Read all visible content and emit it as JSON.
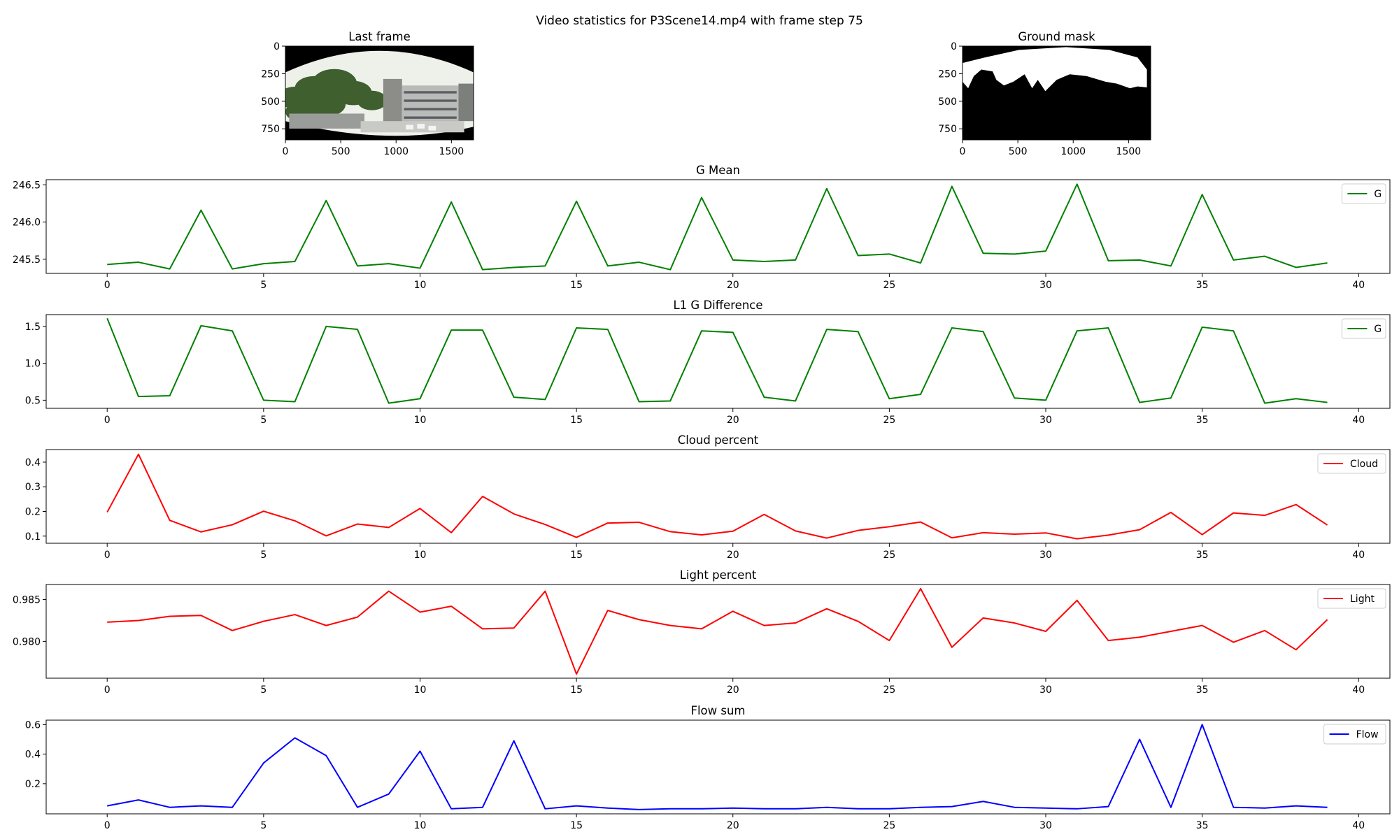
{
  "figure": {
    "title": "Video statistics for P3Scene14.mp4 with frame step 75"
  },
  "images": [
    {
      "title": "Last frame",
      "kind": "photo",
      "xticks": [
        0,
        500,
        1000,
        1500
      ],
      "yticks": [
        0,
        250,
        500,
        750
      ],
      "xlim": [
        0,
        1700
      ],
      "ylim": [
        850,
        0
      ]
    },
    {
      "title": "Ground mask",
      "kind": "mask",
      "xticks": [
        0,
        500,
        1000,
        1500
      ],
      "yticks": [
        0,
        250,
        500,
        750
      ],
      "xlim": [
        0,
        1700
      ],
      "ylim": [
        850,
        0
      ]
    }
  ],
  "chart_data": [
    {
      "type": "line",
      "title": "G Mean",
      "x": [
        0,
        1,
        2,
        3,
        4,
        5,
        6,
        7,
        8,
        9,
        10,
        11,
        12,
        13,
        14,
        15,
        16,
        17,
        18,
        19,
        20,
        21,
        22,
        23,
        24,
        25,
        26,
        27,
        28,
        29,
        30,
        31,
        32,
        33,
        34,
        35,
        36,
        37,
        38,
        39
      ],
      "series": [
        {
          "name": "G",
          "color": "#008000",
          "values": [
            245.43,
            245.46,
            245.37,
            246.16,
            245.37,
            245.44,
            245.47,
            246.29,
            245.41,
            245.44,
            245.38,
            246.27,
            245.36,
            245.39,
            245.41,
            246.28,
            245.41,
            245.46,
            245.36,
            246.33,
            245.49,
            245.47,
            245.49,
            246.45,
            245.55,
            245.57,
            245.45,
            246.48,
            245.58,
            245.57,
            245.61,
            246.51,
            245.48,
            245.49,
            245.41,
            246.37,
            245.49,
            245.54,
            245.39,
            245.45
          ]
        }
      ],
      "yticks": [
        245.5,
        246.0,
        246.5
      ],
      "ytick_labels": [
        "245.5",
        "246.0",
        "246.5"
      ],
      "xticks": [
        0,
        5,
        10,
        15,
        20,
        25,
        30,
        35,
        40
      ],
      "xlim": [
        -1.95,
        41
      ],
      "ylim": [
        245.31,
        246.57
      ],
      "legend": "upper-right"
    },
    {
      "type": "line",
      "title": "L1 G Difference",
      "x": [
        0,
        1,
        2,
        3,
        4,
        5,
        6,
        7,
        8,
        9,
        10,
        11,
        12,
        13,
        14,
        15,
        16,
        17,
        18,
        19,
        20,
        21,
        22,
        23,
        24,
        25,
        26,
        27,
        28,
        29,
        30,
        31,
        32,
        33,
        34,
        35,
        36,
        37,
        38,
        39
      ],
      "series": [
        {
          "name": "G",
          "color": "#008000",
          "values": [
            1.61,
            0.55,
            0.56,
            1.51,
            1.44,
            0.5,
            0.48,
            1.5,
            1.46,
            0.46,
            0.52,
            1.45,
            1.45,
            0.54,
            0.51,
            1.48,
            1.46,
            0.48,
            0.49,
            1.44,
            1.42,
            0.54,
            0.49,
            1.46,
            1.43,
            0.52,
            0.58,
            1.48,
            1.43,
            0.53,
            0.5,
            1.44,
            1.48,
            0.47,
            0.53,
            1.49,
            1.44,
            0.46,
            0.52,
            0.47
          ]
        }
      ],
      "yticks": [
        0.5,
        1.0,
        1.5
      ],
      "ytick_labels": [
        "0.5",
        "1.0",
        "1.5"
      ],
      "xticks": [
        0,
        5,
        10,
        15,
        20,
        25,
        30,
        35,
        40
      ],
      "xlim": [
        -1.95,
        41
      ],
      "ylim": [
        0.39,
        1.66
      ],
      "legend": "upper-right"
    },
    {
      "type": "line",
      "title": "Cloud percent",
      "x": [
        0,
        1,
        2,
        3,
        4,
        5,
        6,
        7,
        8,
        9,
        10,
        11,
        12,
        13,
        14,
        15,
        16,
        17,
        18,
        19,
        20,
        21,
        22,
        23,
        24,
        25,
        26,
        27,
        28,
        29,
        30,
        31,
        32,
        33,
        34,
        35,
        36,
        37,
        38,
        39
      ],
      "series": [
        {
          "name": "Cloud",
          "color": "#ff0000",
          "values": [
            0.197,
            0.432,
            0.164,
            0.117,
            0.146,
            0.201,
            0.162,
            0.101,
            0.149,
            0.135,
            0.212,
            0.114,
            0.261,
            0.19,
            0.147,
            0.095,
            0.153,
            0.156,
            0.118,
            0.105,
            0.12,
            0.188,
            0.121,
            0.092,
            0.123,
            0.138,
            0.157,
            0.093,
            0.114,
            0.108,
            0.113,
            0.089,
            0.104,
            0.126,
            0.196,
            0.106,
            0.194,
            0.184,
            0.228,
            0.145
          ]
        }
      ],
      "yticks": [
        0.1,
        0.2,
        0.3,
        0.4
      ],
      "ytick_labels": [
        "0.1",
        "0.2",
        "0.3",
        "0.4"
      ],
      "xticks": [
        0,
        5,
        10,
        15,
        20,
        25,
        30,
        35,
        40
      ],
      "xlim": [
        -1.95,
        41
      ],
      "ylim": [
        0.071,
        0.451
      ],
      "legend": "upper-right"
    },
    {
      "type": "line",
      "title": "Light percent",
      "x": [
        0,
        1,
        2,
        3,
        4,
        5,
        6,
        7,
        8,
        9,
        10,
        11,
        12,
        13,
        14,
        15,
        16,
        17,
        18,
        19,
        20,
        21,
        22,
        23,
        24,
        25,
        26,
        27,
        28,
        29,
        30,
        31,
        32,
        33,
        34,
        35,
        36,
        37,
        38,
        39
      ],
      "series": [
        {
          "name": "Light",
          "color": "#ff0000",
          "values": [
            0.9823,
            0.9825,
            0.983,
            0.9831,
            0.9813,
            0.9824,
            0.9832,
            0.9819,
            0.9829,
            0.986,
            0.9835,
            0.9842,
            0.9815,
            0.9816,
            0.986,
            0.9761,
            0.9837,
            0.9826,
            0.9819,
            0.9815,
            0.9836,
            0.9819,
            0.9822,
            0.9839,
            0.9824,
            0.9801,
            0.9863,
            0.9793,
            0.9828,
            0.9822,
            0.9812,
            0.9849,
            0.9801,
            0.9805,
            0.9812,
            0.9819,
            0.9799,
            0.9813,
            0.979,
            0.9826
          ]
        }
      ],
      "yticks": [
        0.98,
        0.985
      ],
      "ytick_labels": [
        "0.980",
        "0.985"
      ],
      "xticks": [
        0,
        5,
        10,
        15,
        20,
        25,
        30,
        35,
        40
      ],
      "xlim": [
        -1.95,
        41
      ],
      "ylim": [
        0.9756,
        0.9868
      ],
      "legend": "upper-right"
    },
    {
      "type": "line",
      "title": "Flow sum",
      "x": [
        0,
        1,
        2,
        3,
        4,
        5,
        6,
        7,
        8,
        9,
        10,
        11,
        12,
        13,
        14,
        15,
        16,
        17,
        18,
        19,
        20,
        21,
        22,
        23,
        24,
        25,
        26,
        27,
        28,
        29,
        30,
        31,
        32,
        33,
        34,
        35,
        36,
        37,
        38,
        39
      ],
      "series": [
        {
          "name": "Flow",
          "color": "#0000ff",
          "values": [
            0.05,
            0.09,
            0.04,
            0.05,
            0.04,
            0.34,
            0.51,
            0.39,
            0.04,
            0.13,
            0.42,
            0.03,
            0.04,
            0.49,
            0.03,
            0.05,
            0.035,
            0.025,
            0.03,
            0.03,
            0.035,
            0.03,
            0.03,
            0.04,
            0.03,
            0.03,
            0.04,
            0.045,
            0.08,
            0.04,
            0.035,
            0.03,
            0.045,
            0.5,
            0.04,
            0.6,
            0.04,
            0.035,
            0.05,
            0.04
          ]
        }
      ],
      "yticks": [
        0.2,
        0.4,
        0.6
      ],
      "ytick_labels": [
        "0.2",
        "0.4",
        "0.6"
      ],
      "xticks": [
        0,
        5,
        10,
        15,
        20,
        25,
        30,
        35,
        40
      ],
      "xlim": [
        -1.95,
        41
      ],
      "ylim": [
        -0.004,
        0.63
      ],
      "legend": "upper-right"
    }
  ]
}
